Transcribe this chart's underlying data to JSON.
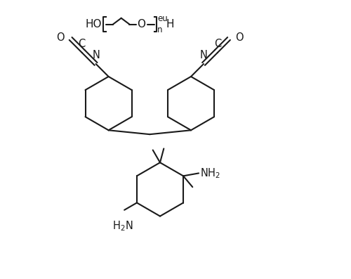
{
  "bg_color": "#ffffff",
  "line_color": "#1a1a1a",
  "line_width": 1.5,
  "font_size": 10.5,
  "fig_width": 5.0,
  "fig_height": 3.97,
  "xlim": [
    0,
    10
  ],
  "ylim": [
    0,
    8
  ]
}
